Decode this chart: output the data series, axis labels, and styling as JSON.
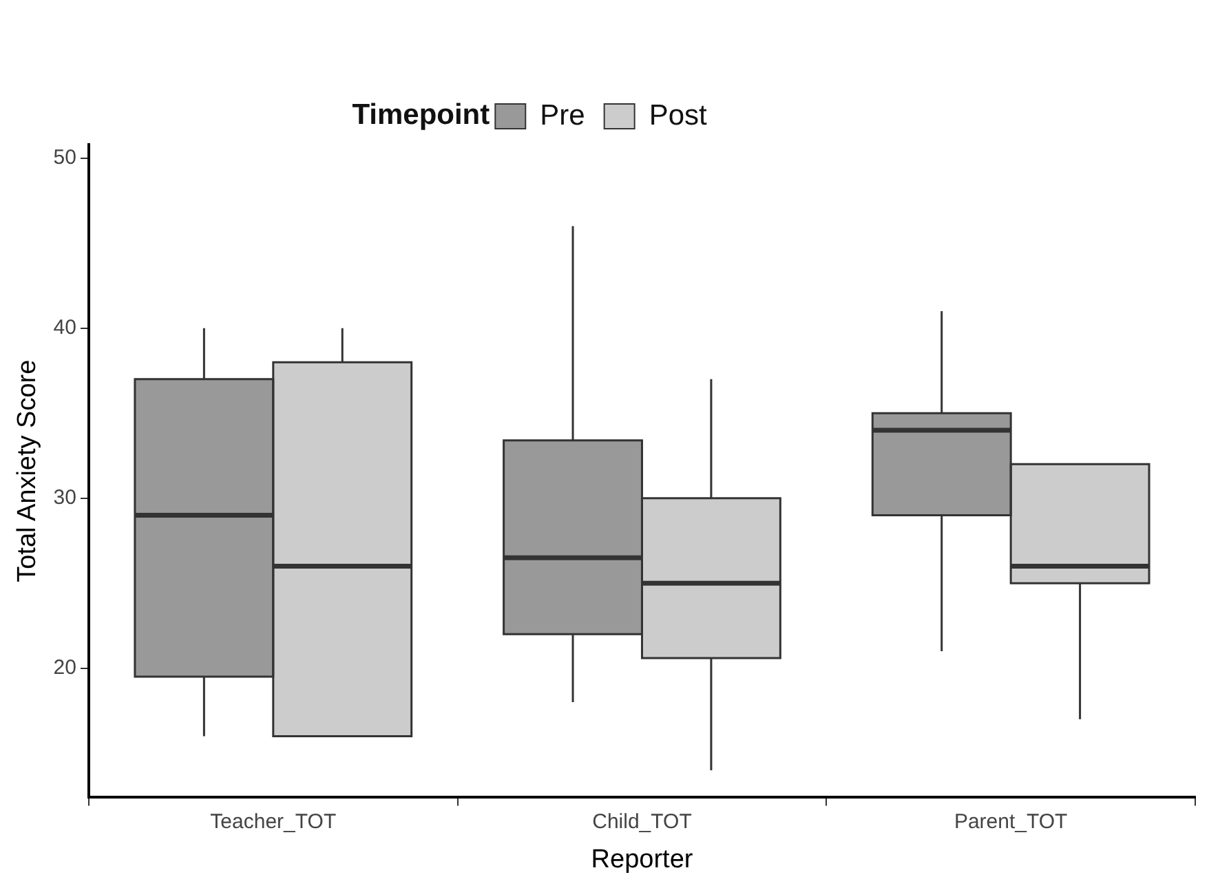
{
  "chart_data": {
    "type": "box",
    "xlabel": "Reporter",
    "ylabel": "Total Anxiety Score",
    "legend_title": "Timepoint",
    "legend": "top",
    "grid": false,
    "categories": [
      "Teacher_TOT",
      "Child_TOT",
      "Parent_TOT"
    ],
    "ylim": [
      12.4,
      50.8
    ],
    "yticks": [
      20,
      30,
      40,
      50
    ],
    "series": [
      {
        "name": "Pre",
        "color": "#999999",
        "boxes": [
          {
            "low": 16,
            "q1": 19.5,
            "median": 29,
            "q3": 37,
            "high": 40
          },
          {
            "low": 18,
            "q1": 22,
            "median": 26.5,
            "q3": 33.4,
            "high": 46
          },
          {
            "low": 21,
            "q1": 29,
            "median": 34,
            "q3": 35,
            "high": 41
          }
        ]
      },
      {
        "name": "Post",
        "color": "#cccccc",
        "boxes": [
          {
            "low": 16,
            "q1": 16,
            "median": 26,
            "q3": 38,
            "high": 40
          },
          {
            "low": 14,
            "q1": 20.6,
            "median": 25,
            "q3": 30,
            "high": 37
          },
          {
            "low": 17,
            "q1": 25,
            "median": 26,
            "q3": 32,
            "high": 32
          }
        ]
      }
    ]
  }
}
